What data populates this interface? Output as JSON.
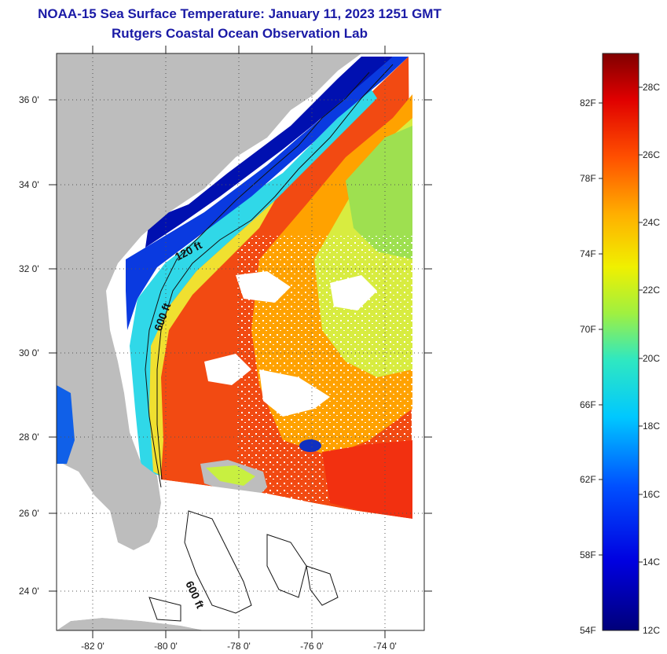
{
  "header": {
    "title_line1": "NOAA-15 Sea Surface Temperature:  January 11, 2023 1251 GMT",
    "title_line2": "Rutgers Coastal Ocean Observation Lab"
  },
  "map": {
    "lat_labels": [
      "36 0'",
      "34 0'",
      "32 0'",
      "30 0'",
      "28 0'",
      "26 0'",
      "24 0'"
    ],
    "lon_labels": [
      "-82 0'",
      "-80 0'",
      "-78 0'",
      "-76 0'",
      "-74 0'"
    ],
    "contour_labels": [
      "120 ft",
      "600 ft",
      "600 ft"
    ],
    "colors": {
      "land": "#bdbdbd",
      "warm": "#f04010",
      "mid": "#ffb000",
      "cool": "#c8e840",
      "coastal_cold": "#0830d8"
    }
  },
  "colorbar": {
    "fahrenheit_labels": [
      "82F",
      "78F",
      "74F",
      "70F",
      "66F",
      "62F",
      "58F",
      "54F"
    ],
    "celsius_labels": [
      "28C",
      "26C",
      "24C",
      "22C",
      "20C",
      "18C",
      "16C",
      "14C",
      "12C"
    ]
  }
}
